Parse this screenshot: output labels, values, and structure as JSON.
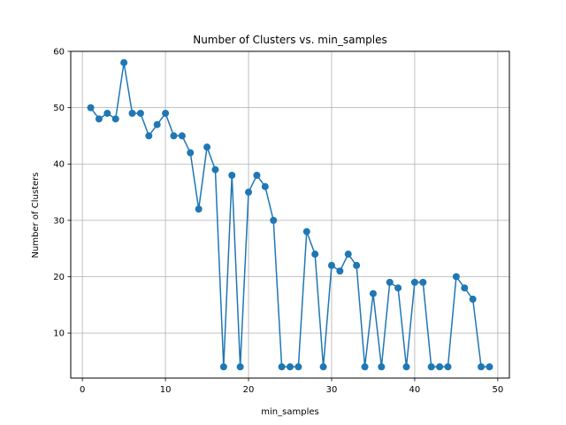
{
  "chart_data": {
    "type": "line",
    "title": "Number of Clusters vs. min_samples",
    "xlabel": "min_samples",
    "ylabel": "Number of Clusters",
    "xlim": [
      -1.4,
      51.4
    ],
    "ylim": [
      2.0,
      60.0
    ],
    "xticks": [
      0,
      10,
      20,
      30,
      40,
      50
    ],
    "yticks": [
      10,
      20,
      30,
      40,
      50,
      60
    ],
    "grid": true,
    "series": [
      {
        "color": "#1f77b4",
        "marker": "circle",
        "x": [
          1,
          2,
          3,
          4,
          5,
          6,
          7,
          8,
          9,
          10,
          11,
          12,
          13,
          14,
          15,
          16,
          17,
          18,
          19,
          20,
          21,
          22,
          23,
          24,
          25,
          26,
          27,
          28,
          29,
          30,
          31,
          32,
          33,
          34,
          35,
          36,
          37,
          38,
          39,
          40,
          41,
          42,
          43,
          44,
          45,
          46,
          47,
          48,
          49
        ],
        "y": [
          50,
          48,
          49,
          48,
          58,
          49,
          49,
          45,
          47,
          49,
          45,
          45,
          42,
          32,
          43,
          39,
          4,
          38,
          4,
          35,
          38,
          36,
          30,
          4,
          4,
          4,
          28,
          24,
          4,
          22,
          21,
          24,
          22,
          4,
          17,
          4,
          19,
          18,
          4,
          19,
          19,
          4,
          4,
          4,
          20,
          18,
          16,
          4,
          4
        ]
      }
    ]
  }
}
